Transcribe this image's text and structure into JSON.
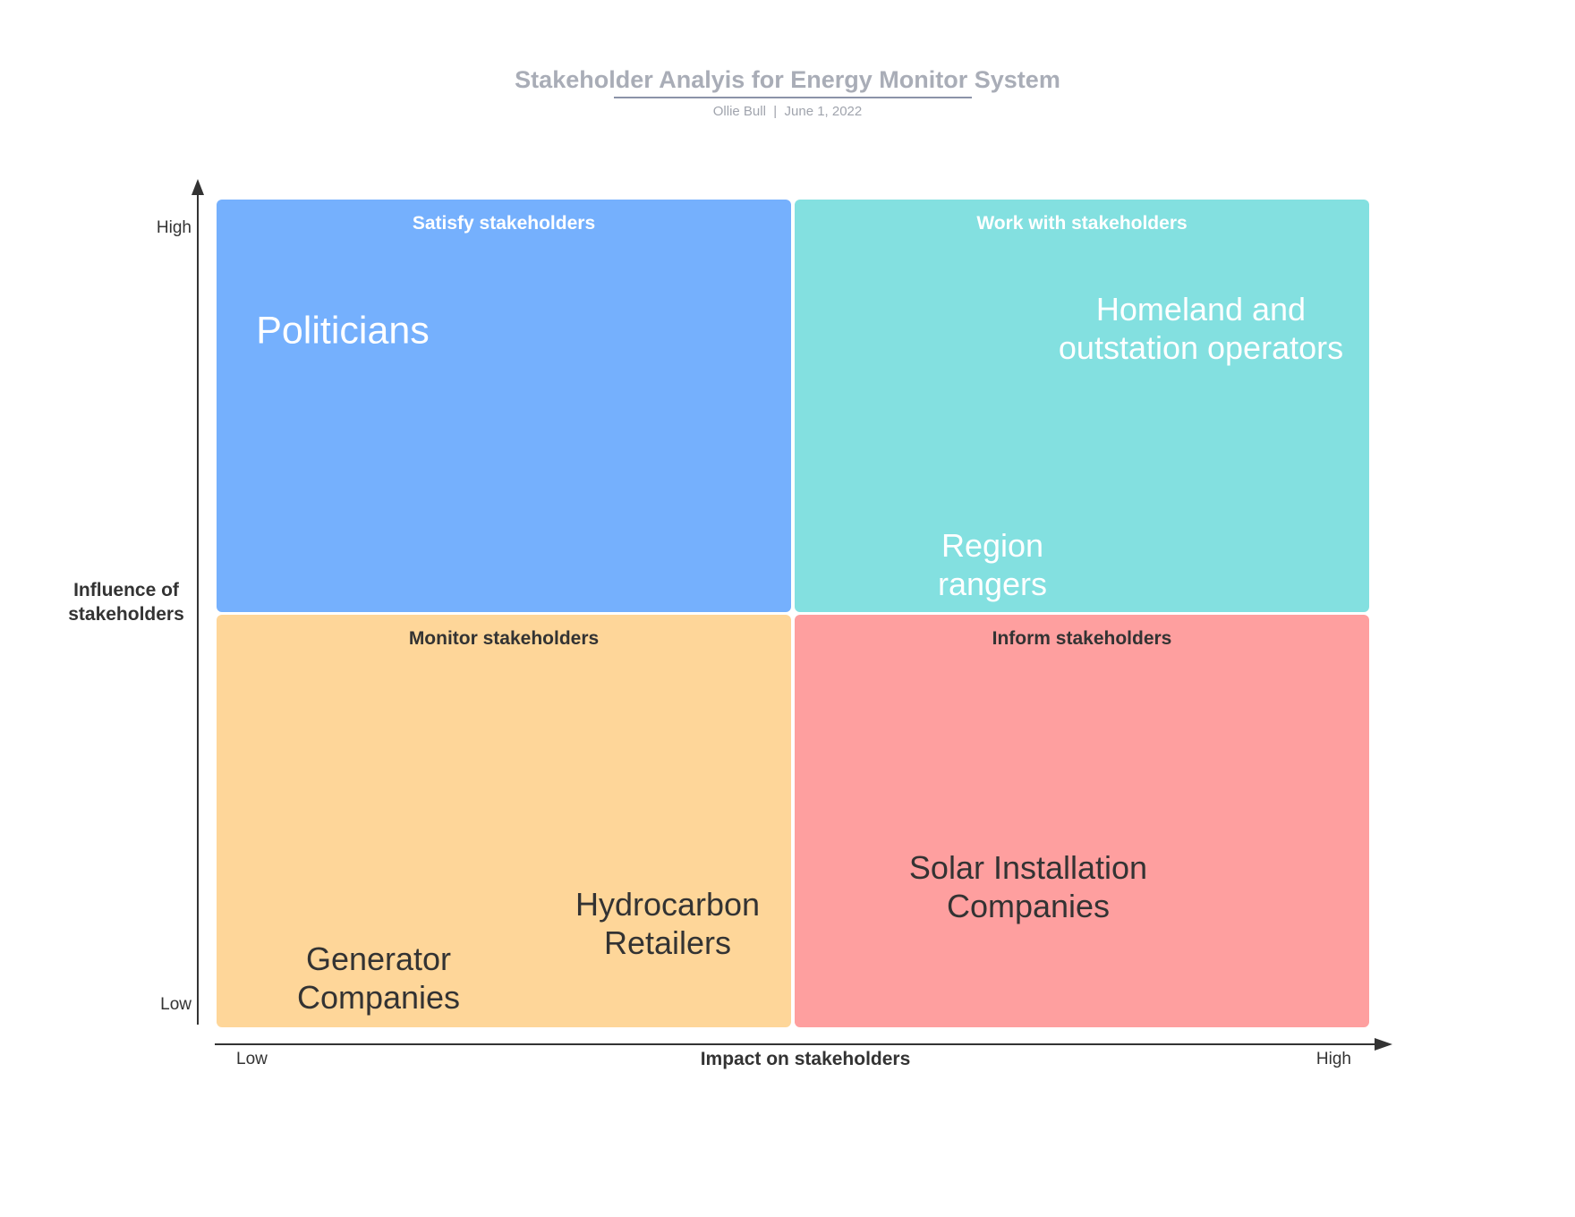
{
  "header": {
    "title": "Stakeholder Analyis for Energy Monitor System",
    "subtitle": "Ollie Bull  |  June 1, 2022"
  },
  "axes": {
    "y_title": "Influence of stakeholders",
    "y_high": "High",
    "y_low": "Low",
    "x_title": "Impact on stakeholders",
    "x_low": "Low",
    "x_high": "High"
  },
  "quadrants": {
    "top_left": {
      "title": "Satisfy stakeholders",
      "color": "#75b0fd",
      "text_color": "#ffffff"
    },
    "top_right": {
      "title": "Work with stakeholders",
      "color": "#83e0e0",
      "text_color": "#ffffff"
    },
    "bottom_left": {
      "title": "Monitor stakeholders",
      "color": "#fed699",
      "text_color": "#333333"
    },
    "bottom_right": {
      "title": "Inform stakeholders",
      "color": "#fe9f9f",
      "text_color": "#333333"
    }
  },
  "stakeholders": {
    "politicians": "Politicians",
    "homeland_1": "Homeland and",
    "homeland_2": "outstation operators",
    "region_1": "Region",
    "region_2": "rangers",
    "generator_1": "Generator",
    "generator_2": "Companies",
    "hydrocarbon_1": "Hydrocarbon",
    "hydrocarbon_2": "Retailers",
    "solar_1": "Solar Installation",
    "solar_2": "Companies"
  }
}
